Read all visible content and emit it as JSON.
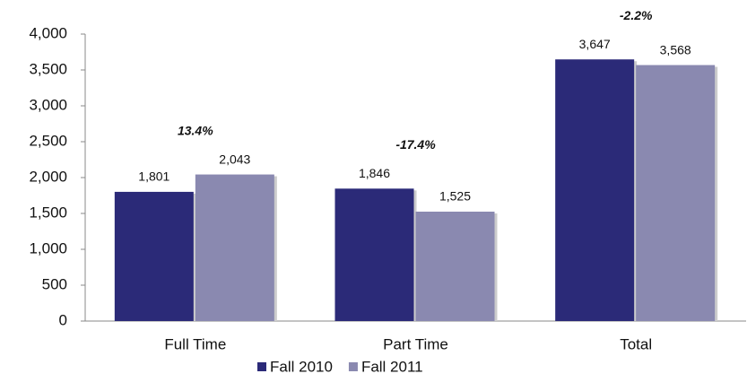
{
  "chart_data": {
    "type": "bar",
    "categories": [
      "Full Time",
      "Part Time",
      "Total"
    ],
    "series": [
      {
        "name": "Fall 2010",
        "color": "#2b2a78",
        "values": [
          1801,
          1846,
          3647
        ],
        "value_labels": [
          "1,801",
          "1,846",
          "3,647"
        ]
      },
      {
        "name": "Fall 2011",
        "color": "#8a89b0",
        "values": [
          2043,
          1525,
          3568
        ],
        "value_labels": [
          "2,043",
          "1,525",
          "3,568"
        ]
      }
    ],
    "annotations": [
      "13.4%",
      "-17.4%",
      "-2.2%"
    ],
    "ylim": [
      0,
      4000
    ],
    "yticks": [
      0,
      500,
      {
        "value": 1000,
        "label": "1,000"
      },
      {
        "value": 1500,
        "label": "1,500"
      },
      {
        "value": 2000,
        "label": "2,000"
      },
      {
        "value": 2500,
        "label": "2,500"
      },
      {
        "value": 3000,
        "label": "3,000"
      },
      {
        "value": 3500,
        "label": "3,500"
      },
      {
        "value": 4000,
        "label": "4,000"
      }
    ],
    "grid": false,
    "legend": "bottom"
  }
}
